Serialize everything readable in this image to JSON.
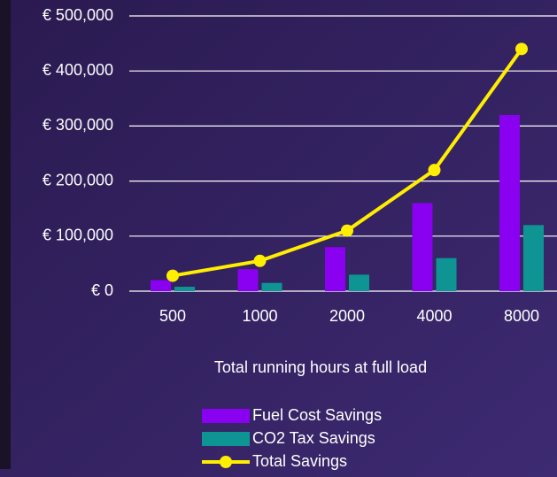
{
  "chart_data": {
    "type": "bar-line",
    "x_label": "Total running hours at full load",
    "categories": [
      "500",
      "1000",
      "2000",
      "4000",
      "8000"
    ],
    "series": [
      {
        "name": "Fuel Cost Savings",
        "type": "bar",
        "color": "#8a00f0",
        "values": [
          20000,
          40000,
          80000,
          160000,
          320000
        ]
      },
      {
        "name": "CO2 Tax Savings",
        "type": "bar",
        "color": "#0f9494",
        "values": [
          8000,
          15000,
          30000,
          60000,
          120000
        ]
      },
      {
        "name": "Total Savings",
        "type": "line",
        "color": "#ffee00",
        "values": [
          28000,
          55000,
          110000,
          220000,
          440000
        ]
      }
    ],
    "ylim": [
      0,
      500000
    ],
    "yticks": [
      {
        "value": 0,
        "label": "€ 0"
      },
      {
        "value": 100000,
        "label": "€ 100,000"
      },
      {
        "value": 200000,
        "label": "€ 200,000"
      },
      {
        "value": 300000,
        "label": "€ 300,000"
      },
      {
        "value": 400000,
        "label": "€ 400,000"
      },
      {
        "value": 500000,
        "label": "€ 500,000"
      }
    ],
    "grid": true
  }
}
